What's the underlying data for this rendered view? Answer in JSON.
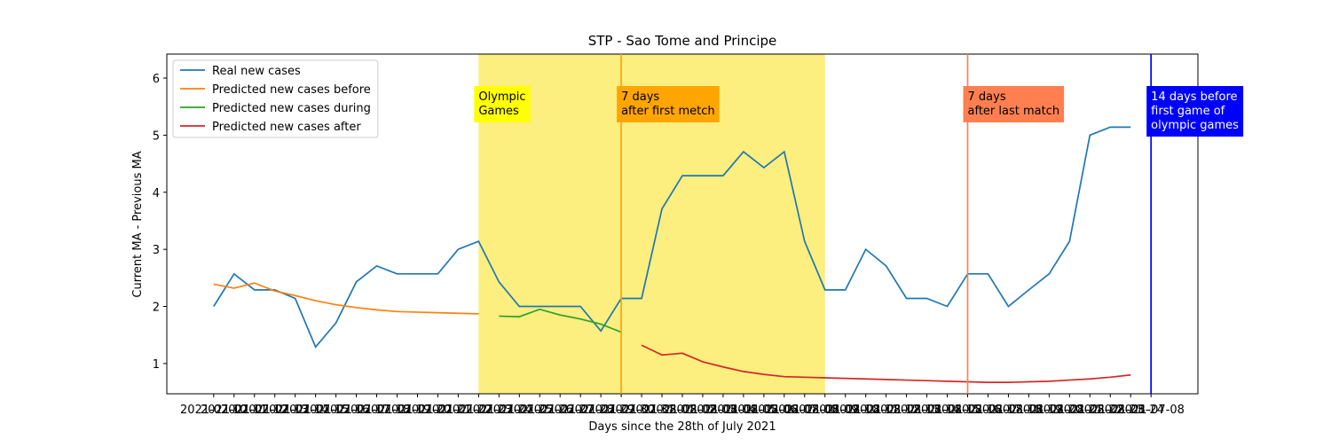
{
  "chart_data": {
    "type": "line",
    "title": "STP - Sao Tome and Principe",
    "x_label": "Days since the 28th of July 2021",
    "y_label": "Current MA - Previous MA",
    "categories": [
      "2021-07-10",
      "2021-07-11",
      "2021-07-12",
      "2021-07-13",
      "2021-07-14",
      "2021-07-15",
      "2021-07-16",
      "2021-07-17",
      "2021-07-18",
      "2021-07-19",
      "2021-07-20",
      "2021-07-21",
      "2021-07-22",
      "2021-07-23",
      "2021-07-24",
      "2021-07-25",
      "2021-07-26",
      "2021-07-27",
      "2021-07-28",
      "2021-07-29",
      "2021-07-30",
      "2021-07-31",
      "2021-08-01",
      "2021-08-02",
      "2021-08-03",
      "2021-08-04",
      "2021-08-05",
      "2021-08-06",
      "2021-08-07",
      "2021-08-08",
      "2021-08-09",
      "2021-08-10",
      "2021-08-11",
      "2021-08-12",
      "2021-08-13",
      "2021-08-14",
      "2021-08-15",
      "2021-08-16",
      "2021-08-17",
      "2021-08-18",
      "2021-08-19",
      "2021-08-20",
      "2021-08-21",
      "2021-08-22",
      "2021-08-23",
      "2021-08-24",
      "2021-07-08"
    ],
    "series": [
      {
        "name": "Real new cases",
        "color": "#1f77b4",
        "values": [
          2.0,
          2.57,
          2.29,
          2.29,
          2.14,
          1.29,
          1.71,
          2.43,
          2.71,
          2.57,
          2.57,
          2.57,
          3.0,
          3.14,
          2.43,
          2.0,
          2.0,
          2.0,
          2.0,
          1.57,
          2.14,
          2.14,
          3.71,
          4.29,
          4.29,
          4.29,
          4.71,
          4.43,
          4.71,
          3.14,
          2.29,
          2.29,
          3.0,
          2.71,
          2.14,
          2.14,
          2.0,
          2.57,
          2.57,
          2.0,
          2.29,
          2.57,
          3.14,
          5.0,
          5.14,
          5.14,
          null
        ]
      },
      {
        "name": "Predicted new cases before",
        "color": "#ff7f0e",
        "values": [
          2.39,
          2.32,
          2.41,
          2.27,
          2.19,
          2.1,
          2.03,
          1.98,
          1.94,
          1.91,
          1.9,
          1.89,
          1.88,
          1.87,
          null,
          null,
          null,
          null,
          null,
          null,
          null,
          null,
          null,
          null,
          null,
          null,
          null,
          null,
          null,
          null,
          null,
          null,
          null,
          null,
          null,
          null,
          null,
          null,
          null,
          null,
          null,
          null,
          null,
          null,
          null,
          null,
          null
        ]
      },
      {
        "name": "Predicted new cases during",
        "color": "#2ca02c",
        "values": [
          null,
          null,
          null,
          null,
          null,
          null,
          null,
          null,
          null,
          null,
          null,
          null,
          null,
          null,
          1.83,
          1.82,
          1.95,
          1.85,
          1.78,
          1.69,
          1.55,
          null,
          null,
          null,
          null,
          null,
          null,
          null,
          null,
          null,
          null,
          null,
          null,
          null,
          null,
          null,
          null,
          null,
          null,
          null,
          null,
          null,
          null,
          null,
          null,
          null,
          null
        ]
      },
      {
        "name": "Predicted new cases after",
        "color": "#d62728",
        "values": [
          null,
          null,
          null,
          null,
          null,
          null,
          null,
          null,
          null,
          null,
          null,
          null,
          null,
          null,
          null,
          null,
          null,
          null,
          null,
          null,
          null,
          1.32,
          1.15,
          1.18,
          1.03,
          0.94,
          0.86,
          0.81,
          0.77,
          0.76,
          0.75,
          0.74,
          0.73,
          0.72,
          0.71,
          0.7,
          0.69,
          0.68,
          0.67,
          0.67,
          0.68,
          0.69,
          0.71,
          0.73,
          0.76,
          0.8,
          null
        ]
      }
    ],
    "ylim": [
      0.47,
      6.42
    ],
    "yticks": [
      1,
      2,
      3,
      4,
      5,
      6
    ],
    "legend": "upper left",
    "spans": [
      {
        "start": "2021-07-23",
        "end": "2021-08-09",
        "color": "#fcee7f"
      }
    ],
    "annotations": [
      {
        "x": "2021-07-23",
        "lines": [
          "Olympic",
          "Games"
        ],
        "color": "#ffff00",
        "text_color": "#000000"
      },
      {
        "x": "2021-07-30",
        "lines": [
          "7 days",
          "after first metch"
        ],
        "color": "#ffa500",
        "text_color": "#000000",
        "vline": true
      },
      {
        "x": "2021-08-16",
        "lines": [
          "7 days",
          "after last match"
        ],
        "color": "#ff7f50",
        "text_color": "#000000",
        "vline": true
      },
      {
        "x": "2021-07-08",
        "lines": [
          "14 days before",
          "first game of",
          "olympic games"
        ],
        "color": "#0000ff",
        "text_color": "#ffffff",
        "vline": true
      }
    ]
  }
}
